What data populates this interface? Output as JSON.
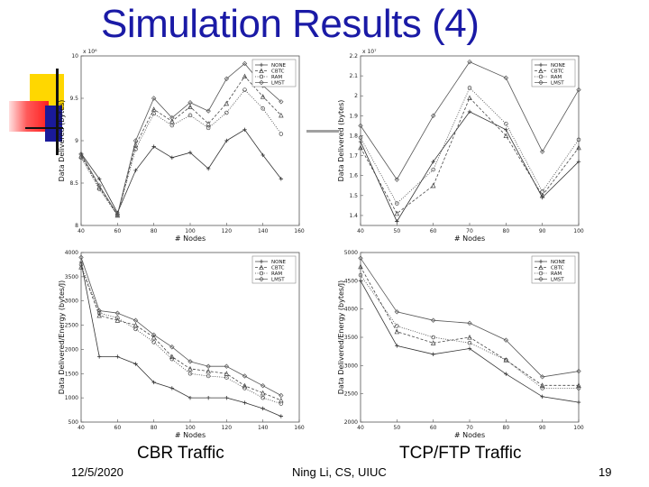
{
  "slide": {
    "title": "Simulation Results (4)",
    "caption_left": "CBR Traffic",
    "caption_right": "TCP/FTP Traffic",
    "footer_date": "12/5/2020",
    "footer_author": "Ning Li, CS, UIUC",
    "footer_page": "19"
  },
  "colors": {
    "title": "#1a1aa6",
    "deco_yellow": "#ffd700",
    "deco_red": "#ff2a2a",
    "deco_blue": "#1a1a9a",
    "deco_gray": "#a0a0a0"
  },
  "chart_data": [
    {
      "type": "line",
      "title": "",
      "xlabel": "# Nodes",
      "ylabel": "Data Delivered (bytes)",
      "exponent_label": "x 10⁶",
      "xlim": [
        40,
        160
      ],
      "ylim": [
        8.0,
        10.0
      ],
      "xticks": [
        40,
        60,
        80,
        100,
        120,
        140,
        160
      ],
      "yticks": [
        8.0,
        8.5,
        9.0,
        9.5,
        10.0
      ],
      "ytick_labels": [
        "8",
        "8.5",
        "9",
        "9.5",
        "10"
      ],
      "legend_pos": "top-right",
      "x": [
        40,
        50,
        60,
        70,
        80,
        90,
        100,
        110,
        120,
        130,
        140,
        150
      ],
      "series": [
        {
          "name": "NONE",
          "values": [
            8.85,
            8.55,
            8.15,
            8.65,
            8.93,
            8.8,
            8.86,
            8.67,
            9.0,
            9.13,
            8.83,
            8.55
          ]
        },
        {
          "name": "CBTC",
          "values": [
            8.82,
            8.45,
            8.12,
            8.95,
            9.37,
            9.23,
            9.4,
            9.2,
            9.44,
            9.76,
            9.52,
            9.3
          ]
        },
        {
          "name": "RAM",
          "values": [
            8.8,
            8.43,
            8.12,
            8.9,
            9.32,
            9.18,
            9.3,
            9.15,
            9.33,
            9.6,
            9.38,
            9.08
          ]
        },
        {
          "name": "LMST",
          "values": [
            8.84,
            8.47,
            8.13,
            9.0,
            9.5,
            9.27,
            9.45,
            9.35,
            9.73,
            9.91,
            9.65,
            9.46
          ]
        }
      ]
    },
    {
      "type": "line",
      "title": "",
      "xlabel": "# Nodes",
      "ylabel": "Data Delivered (bytes)",
      "exponent_label": "x 10⁷",
      "xlim": [
        40,
        100
      ],
      "ylim": [
        1.35,
        2.2
      ],
      "xticks": [
        40,
        50,
        60,
        70,
        80,
        90,
        100
      ],
      "yticks": [
        1.4,
        1.5,
        1.6,
        1.7,
        1.8,
        1.9,
        2.0,
        2.1,
        2.2
      ],
      "ytick_labels": [
        "1.4",
        "1.5",
        "1.6",
        "1.7",
        "1.8",
        "1.9",
        "2",
        "2.1",
        "2.2"
      ],
      "legend_pos": "top-right",
      "x": [
        40,
        50,
        60,
        70,
        80,
        90,
        100
      ],
      "series": [
        {
          "name": "NONE",
          "values": [
            1.77,
            1.37,
            1.67,
            1.92,
            1.83,
            1.49,
            1.67
          ]
        },
        {
          "name": "CBTC",
          "values": [
            1.74,
            1.41,
            1.55,
            1.99,
            1.8,
            1.5,
            1.74
          ]
        },
        {
          "name": "RAM",
          "values": [
            1.79,
            1.46,
            1.63,
            2.04,
            1.86,
            1.52,
            1.78
          ]
        },
        {
          "name": "LMST",
          "values": [
            1.85,
            1.58,
            1.9,
            2.17,
            2.09,
            1.72,
            2.03
          ]
        }
      ]
    },
    {
      "type": "line",
      "title": "",
      "xlabel": "# Nodes",
      "ylabel": "Data Delivered/Energy (bytes/J)",
      "xlim": [
        40,
        160
      ],
      "ylim": [
        500,
        4000
      ],
      "xticks": [
        40,
        60,
        80,
        100,
        120,
        140,
        160
      ],
      "yticks": [
        500,
        1000,
        1500,
        2000,
        2500,
        3000,
        3500,
        4000
      ],
      "ytick_labels": [
        "500",
        "1000",
        "1500",
        "2000",
        "2500",
        "3000",
        "3500",
        "4000"
      ],
      "legend_pos": "top-right",
      "x": [
        40,
        50,
        60,
        70,
        80,
        90,
        100,
        110,
        120,
        130,
        140,
        150
      ],
      "series": [
        {
          "name": "NONE",
          "values": [
            3800,
            1850,
            1850,
            1700,
            1320,
            1200,
            1000,
            1000,
            1000,
            900,
            780,
            620
          ]
        },
        {
          "name": "CBTC",
          "values": [
            3700,
            2700,
            2600,
            2500,
            2250,
            1850,
            1600,
            1550,
            1500,
            1250,
            1100,
            950
          ]
        },
        {
          "name": "RAM",
          "values": [
            3750,
            2750,
            2650,
            2420,
            2150,
            1800,
            1500,
            1450,
            1420,
            1200,
            1000,
            880
          ]
        },
        {
          "name": "LMST",
          "values": [
            3900,
            2800,
            2750,
            2600,
            2300,
            2050,
            1750,
            1650,
            1650,
            1450,
            1250,
            1050
          ]
        }
      ]
    },
    {
      "type": "line",
      "title": "",
      "xlabel": "# Nodes",
      "ylabel": "Data Delivered/Energy (bytes/J)",
      "xlim": [
        40,
        100
      ],
      "ylim": [
        2000,
        5000
      ],
      "xticks": [
        40,
        50,
        60,
        70,
        80,
        90,
        100
      ],
      "yticks": [
        2000,
        2500,
        3000,
        3500,
        4000,
        4500,
        5000
      ],
      "ytick_labels": [
        "2000",
        "2500",
        "3000",
        "3500",
        "4000",
        "4500",
        "5000"
      ],
      "legend_pos": "top-right",
      "x": [
        40,
        50,
        60,
        70,
        80,
        90,
        100
      ],
      "series": [
        {
          "name": "NONE",
          "values": [
            4500,
            3350,
            3200,
            3300,
            2850,
            2450,
            2350
          ]
        },
        {
          "name": "CBTC",
          "values": [
            4750,
            3600,
            3400,
            3500,
            3100,
            2650,
            2650
          ]
        },
        {
          "name": "RAM",
          "values": [
            4600,
            3700,
            3500,
            3400,
            3100,
            2600,
            2600
          ]
        },
        {
          "name": "LMST",
          "values": [
            4900,
            3950,
            3800,
            3750,
            3450,
            2800,
            2900
          ]
        }
      ]
    }
  ]
}
